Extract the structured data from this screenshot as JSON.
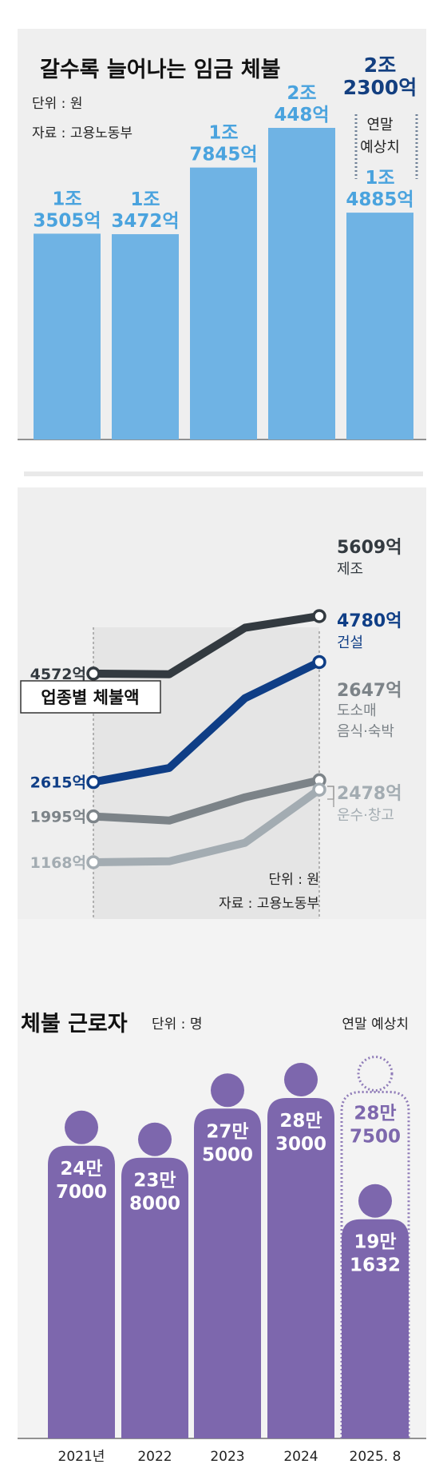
{
  "colors": {
    "panel_bg": "#efefef",
    "bar_blue": "#6fb3e4",
    "label_blue": "#4aa3de",
    "dark_blue": "#133f80",
    "industry_dark": "#333a40",
    "industry_navy": "#0f3e86",
    "industry_gray": "#7c8388",
    "industry_light": "#a3acb2",
    "people_purple": "#7d67ad",
    "projection_purple": "#8f7bb8"
  },
  "chart_data": [
    {
      "id": "wage_arrears",
      "type": "bar",
      "title": "갈수록 늘어나는 임금 체불",
      "unit_label": "단위 : 원",
      "source_label": "자료 : 고용노동부",
      "categories": [
        "2021년",
        "2022",
        "2023",
        "2024",
        "2025. 8"
      ],
      "values_eok": [
        13505,
        13472,
        17845,
        20448,
        14885
      ],
      "value_labels": [
        [
          "1조",
          "3505억"
        ],
        [
          "1조",
          "3472억"
        ],
        [
          "1조",
          "7845억"
        ],
        [
          "2조",
          "448억"
        ],
        [
          "1조",
          "4885억"
        ]
      ],
      "projection": {
        "value_eok": 23000,
        "label": [
          "2조",
          "2300억"
        ],
        "note": [
          "연말",
          "예상치"
        ]
      },
      "ylim": [
        0,
        24000
      ]
    },
    {
      "id": "by_industry",
      "type": "line",
      "title": "업종별 체불액",
      "unit_label": "단위 : 원",
      "source_label": "자료 : 고용노동부",
      "x_labels": [
        "2021년",
        "2024"
      ],
      "series": [
        {
          "name": "제조",
          "values_eok": [
            4572,
            4560,
            5400,
            5609
          ],
          "start_label": "4572억",
          "end_label": "5609억",
          "color_key": "industry_dark"
        },
        {
          "name": "건설",
          "values_eok": [
            2615,
            2870,
            4130,
            4780
          ],
          "start_label": "2615억",
          "end_label": "4780억",
          "color_key": "industry_navy"
        },
        {
          "name": "도소매 음식·숙박",
          "name_lines": [
            "도소매",
            "음식·숙박"
          ],
          "values_eok": [
            1995,
            1920,
            2340,
            2647
          ],
          "start_label": "1995억",
          "end_label": "2647억",
          "color_key": "industry_gray"
        },
        {
          "name": "운수·창고",
          "values_eok": [
            1168,
            1185,
            1520,
            2478
          ],
          "start_label": "1168억",
          "end_label": "2478억",
          "color_key": "industry_light"
        }
      ]
    },
    {
      "id": "affected_workers",
      "type": "bar",
      "title": "체불 근로자",
      "unit_label": "단위 : 명",
      "projection_note": "연말 예상치",
      "categories": [
        "2021년",
        "2022",
        "2023",
        "2024",
        "2025. 8"
      ],
      "values": [
        247000,
        238000,
        275000,
        283000,
        191632
      ],
      "value_labels": [
        [
          "24만",
          "7000"
        ],
        [
          "23만",
          "8000"
        ],
        [
          "27만",
          "5000"
        ],
        [
          "28만",
          "3000"
        ],
        [
          "19만",
          "1632"
        ]
      ],
      "projection": {
        "value": 287500,
        "label": [
          "28만",
          "7500"
        ]
      }
    }
  ]
}
